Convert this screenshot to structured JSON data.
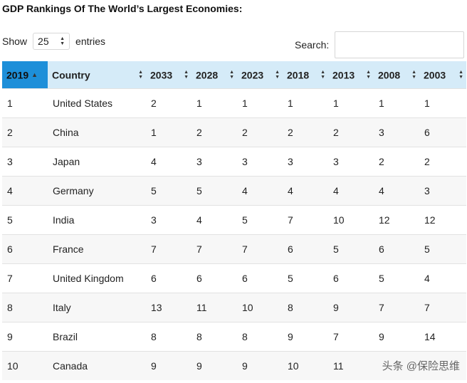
{
  "title": "GDP Rankings Of The World’s Largest Economies:",
  "length_menu": {
    "show_label": "Show",
    "value": "25",
    "entries_label": "entries"
  },
  "search": {
    "label": "Search:",
    "value": ""
  },
  "columns": [
    "2019",
    "Country",
    "2033",
    "2028",
    "2023",
    "2018",
    "2013",
    "2008",
    "2003"
  ],
  "sorted_column": "2019",
  "rows": [
    [
      "1",
      "United States",
      "2",
      "1",
      "1",
      "1",
      "1",
      "1",
      "1"
    ],
    [
      "2",
      "China",
      "1",
      "2",
      "2",
      "2",
      "2",
      "3",
      "6"
    ],
    [
      "3",
      "Japan",
      "4",
      "3",
      "3",
      "3",
      "3",
      "2",
      "2"
    ],
    [
      "4",
      "Germany",
      "5",
      "5",
      "4",
      "4",
      "4",
      "4",
      "3"
    ],
    [
      "5",
      "India",
      "3",
      "4",
      "5",
      "7",
      "10",
      "12",
      "12"
    ],
    [
      "6",
      "France",
      "7",
      "7",
      "7",
      "6",
      "5",
      "6",
      "5"
    ],
    [
      "7",
      "United Kingdom",
      "6",
      "6",
      "6",
      "5",
      "6",
      "5",
      "4"
    ],
    [
      "8",
      "Italy",
      "13",
      "11",
      "10",
      "8",
      "9",
      "7",
      "7"
    ],
    [
      "9",
      "Brazil",
      "8",
      "8",
      "8",
      "9",
      "7",
      "9",
      "14"
    ],
    [
      "10",
      "Canada",
      "9",
      "9",
      "9",
      "10",
      "11",
      "",
      ""
    ]
  ],
  "watermark": "头条 @保险思维",
  "colors": {
    "header_bg": "#d5ebf8",
    "active_header_bg": "#1d8fd9"
  }
}
